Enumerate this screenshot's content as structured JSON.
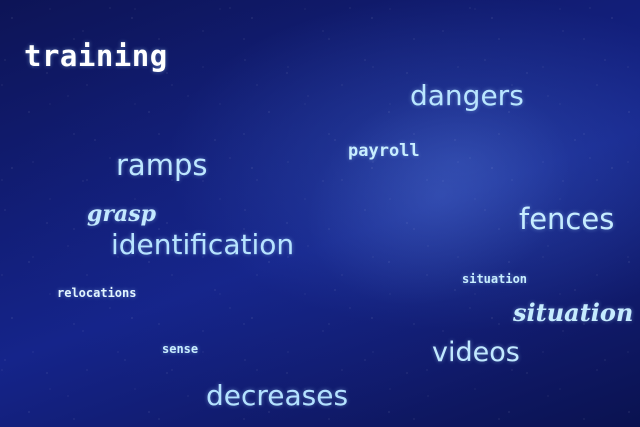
{
  "words": {
    "training": "training",
    "dangers": "dangers",
    "payroll": "payroll",
    "ramps": "ramps",
    "grasp": "grasp",
    "fences": "fences",
    "identification": "identification",
    "situation_small": "situation",
    "relocations": "relocations",
    "situation_large": "situation",
    "sense": "sense",
    "videos": "videos",
    "decreases": "decreases"
  },
  "colors": {
    "background": "#121e78",
    "text_primary": "#bfe8ff",
    "text_highlight": "#ffffff"
  }
}
